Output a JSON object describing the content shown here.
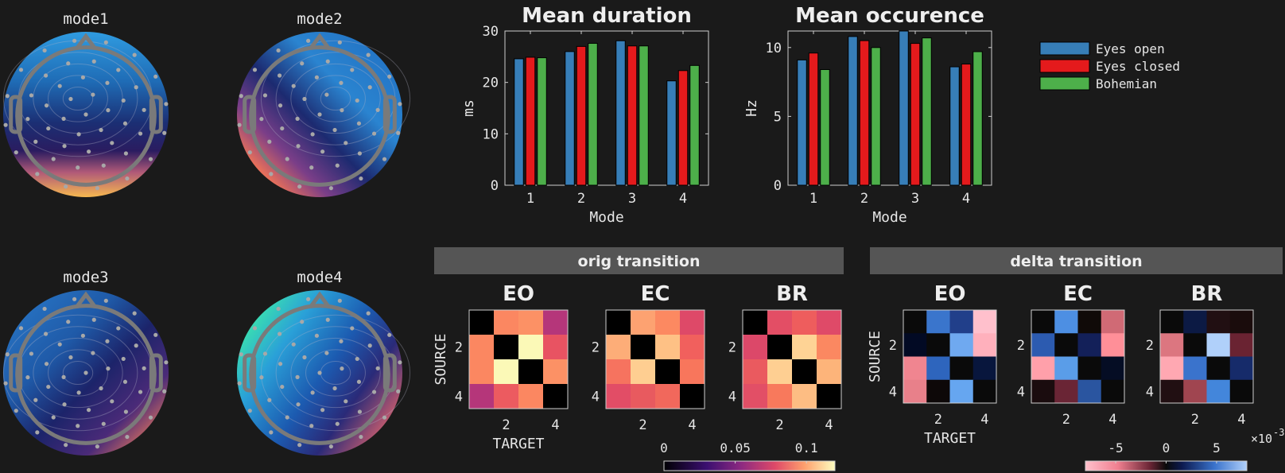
{
  "topomaps": [
    {
      "title": "mode1",
      "pattern": "blue-top-orange-bottom"
    },
    {
      "title": "mode2",
      "pattern": "blue-top-right-orange-bottom-left"
    },
    {
      "title": "mode3",
      "pattern": "blue-top-left-orange-bottom-right"
    },
    {
      "title": "mode4",
      "pattern": "cyan-left-blue-center-orange-bottom-right"
    }
  ],
  "chart_data": [
    {
      "type": "bar",
      "title": "Mean duration",
      "xlabel": "Mode",
      "ylabel": "ms",
      "categories": [
        "1",
        "2",
        "3",
        "4"
      ],
      "ylim": [
        0,
        30
      ],
      "yticks": [
        "0",
        "10",
        "20",
        "30"
      ],
      "yticks_values": [
        0,
        10,
        20,
        30
      ],
      "series": [
        {
          "name": "Eyes open",
          "color": "#377eb8",
          "values": [
            24.6,
            26.0,
            28.1,
            20.3
          ]
        },
        {
          "name": "Eyes closed",
          "color": "#e41a1c",
          "values": [
            24.9,
            27.0,
            27.1,
            22.3
          ]
        },
        {
          "name": "Bohemian",
          "color": "#4daf4a",
          "values": [
            24.8,
            27.6,
            27.1,
            23.3
          ]
        }
      ]
    },
    {
      "type": "bar",
      "title": "Mean occurence",
      "xlabel": "Mode",
      "ylabel": "Hz",
      "categories": [
        "1",
        "2",
        "3",
        "4"
      ],
      "ylim": [
        0,
        11.2
      ],
      "yticks": [
        "0",
        "5",
        "10"
      ],
      "yticks_values": [
        0,
        5,
        10
      ],
      "series": [
        {
          "name": "Eyes open",
          "color": "#377eb8",
          "values": [
            9.1,
            10.8,
            11.3,
            8.6
          ]
        },
        {
          "name": "Eyes closed",
          "color": "#e41a1c",
          "values": [
            9.6,
            10.5,
            10.3,
            8.8
          ]
        },
        {
          "name": "Bohemian",
          "color": "#4daf4a",
          "values": [
            8.4,
            10.0,
            10.7,
            9.7
          ]
        }
      ]
    },
    {
      "type": "heatmap",
      "panel_title": "orig transition",
      "xlabel": "TARGET",
      "ylabel": "SOURCE",
      "ticks": [
        "2",
        "4"
      ],
      "colorbar": {
        "colormap": "magma",
        "ticks": [
          "0",
          "0.05",
          "0.1"
        ],
        "tick_values": [
          0,
          0.05,
          0.1
        ],
        "range": [
          0,
          0.12
        ]
      },
      "matrices": [
        {
          "title": "EO",
          "cells": [
            [
              "#000000",
              "#fb8761",
              "#fc9165",
              "#b5367a"
            ],
            [
              "#fb8761",
              "#000000",
              "#fbf9b7",
              "#e85362"
            ],
            [
              "#fb8761",
              "#fbf9b7",
              "#000000",
              "#fc9165"
            ],
            [
              "#b5367a",
              "#ec5b60",
              "#fb8761",
              "#000000"
            ]
          ]
        },
        {
          "title": "EC",
          "cells": [
            [
              "#000000",
              "#fda271",
              "#fc8961",
              "#de4968"
            ],
            [
              "#fdad78",
              "#000000",
              "#fec185",
              "#f1605d"
            ],
            [
              "#f6735f",
              "#fece91",
              "#000000",
              "#f8765c"
            ],
            [
              "#e24d66",
              "#e85a5f",
              "#f1685c",
              "#000000"
            ]
          ]
        },
        {
          "title": "BR",
          "cells": [
            [
              "#000000",
              "#e34e65",
              "#ee5d5d",
              "#df4a68"
            ],
            [
              "#dc4869",
              "#000000",
              "#fed395",
              "#fb8861"
            ],
            [
              "#ea5a5f",
              "#fecf92",
              "#000000",
              "#fdb47a"
            ],
            [
              "#e24f66",
              "#f8795c",
              "#fdbd83",
              "#000000"
            ]
          ]
        }
      ]
    },
    {
      "type": "heatmap",
      "panel_title": "delta transition",
      "xlabel": "TARGET",
      "ylabel": "SOURCE",
      "ticks": [
        "2",
        "4"
      ],
      "colorbar": {
        "colormap": "pink-black-blue",
        "ticks": [
          "-5",
          "0",
          "5"
        ],
        "tick_values": [
          -5,
          0,
          5
        ],
        "range": [
          -8,
          8
        ],
        "exponent_label": "×10",
        "exponent": "-3"
      },
      "matrices": [
        {
          "title": "EO",
          "cells": [
            [
              "#0a0a0a",
              "#3a75cc",
              "#213f8a",
              "#ffc0cc"
            ],
            [
              "#020a24",
              "#0a0a0a",
              "#6fa9f0",
              "#ffb0bc"
            ],
            [
              "#f08590",
              "#2e65bd",
              "#0a0a0a",
              "#08163d"
            ],
            [
              "#e8808a",
              "#0d0808",
              "#66a6f0",
              "#0a0a0a"
            ]
          ]
        },
        {
          "title": "EC",
          "cells": [
            [
              "#0a0a0a",
              "#4d8fe3",
              "#100a08",
              "#d06a75"
            ],
            [
              "#2c5bb0",
              "#0a0a0a",
              "#132059",
              "#ff8f98"
            ],
            [
              "#ffa0aa",
              "#5a9de8",
              "#0a0a0a",
              "#050d24"
            ],
            [
              "#1a0c0e",
              "#6a2535",
              "#2a55a0",
              "#0a0a0a"
            ]
          ]
        },
        {
          "title": "BR",
          "cells": [
            [
              "#0a0a0a",
              "#0c1a44",
              "#210f12",
              "#1a0c0c"
            ],
            [
              "#dc7680",
              "#0a0a0a",
              "#b0d0fa",
              "#6a2332"
            ],
            [
              "#ffa8b2",
              "#3a73cc",
              "#0a0a0a",
              "#162b6a"
            ],
            [
              "#210f12",
              "#a04550",
              "#4386db",
              "#0a0a0a"
            ]
          ]
        }
      ]
    }
  ]
}
